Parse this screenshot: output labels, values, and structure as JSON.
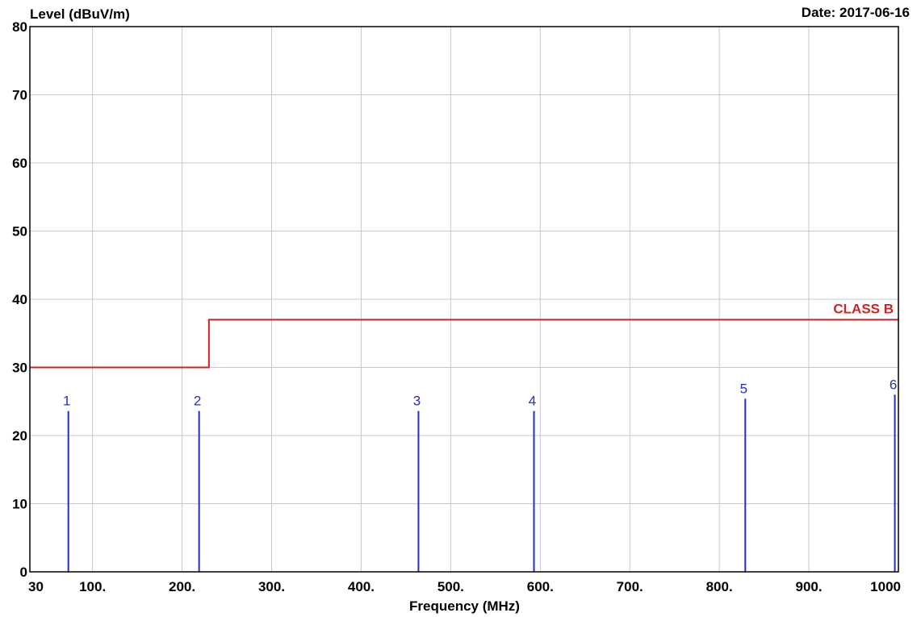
{
  "header": {
    "ylabel": "Level (dBuV/m)",
    "date": "Date: 2017-06-16"
  },
  "chart_data": {
    "type": "line",
    "ylabel": "Level (dBuV/m)",
    "xlabel": "Frequency (MHz)",
    "xlim": [
      30,
      1000
    ],
    "ylim": [
      0,
      80
    ],
    "x_ticks": [
      {
        "value": 30,
        "label": "30"
      },
      {
        "value": 100,
        "label": "100."
      },
      {
        "value": 200,
        "label": "200."
      },
      {
        "value": 300,
        "label": "300."
      },
      {
        "value": 400,
        "label": "400."
      },
      {
        "value": 500,
        "label": "500."
      },
      {
        "value": 600,
        "label": "600."
      },
      {
        "value": 700,
        "label": "700."
      },
      {
        "value": 800,
        "label": "800."
      },
      {
        "value": 900,
        "label": "900."
      },
      {
        "value": 1000,
        "label": "1000"
      }
    ],
    "y_ticks": [
      0,
      10,
      20,
      30,
      40,
      50,
      60,
      70,
      80
    ],
    "grid": true,
    "limit_line": {
      "name": "CLASS B",
      "color": "#d42020",
      "points": [
        [
          30,
          30
        ],
        [
          230,
          30
        ],
        [
          230,
          37
        ],
        [
          1000,
          37
        ]
      ]
    },
    "peaks": {
      "color": "#1f2fd0",
      "points": [
        {
          "label": "1",
          "x": 73,
          "y": 23.6
        },
        {
          "label": "2",
          "x": 219,
          "y": 23.6
        },
        {
          "label": "3",
          "x": 464,
          "y": 23.6
        },
        {
          "label": "4",
          "x": 593,
          "y": 23.6
        },
        {
          "label": "5",
          "x": 829,
          "y": 25.4
        },
        {
          "label": "6",
          "x": 996,
          "y": 26.0
        }
      ]
    }
  }
}
